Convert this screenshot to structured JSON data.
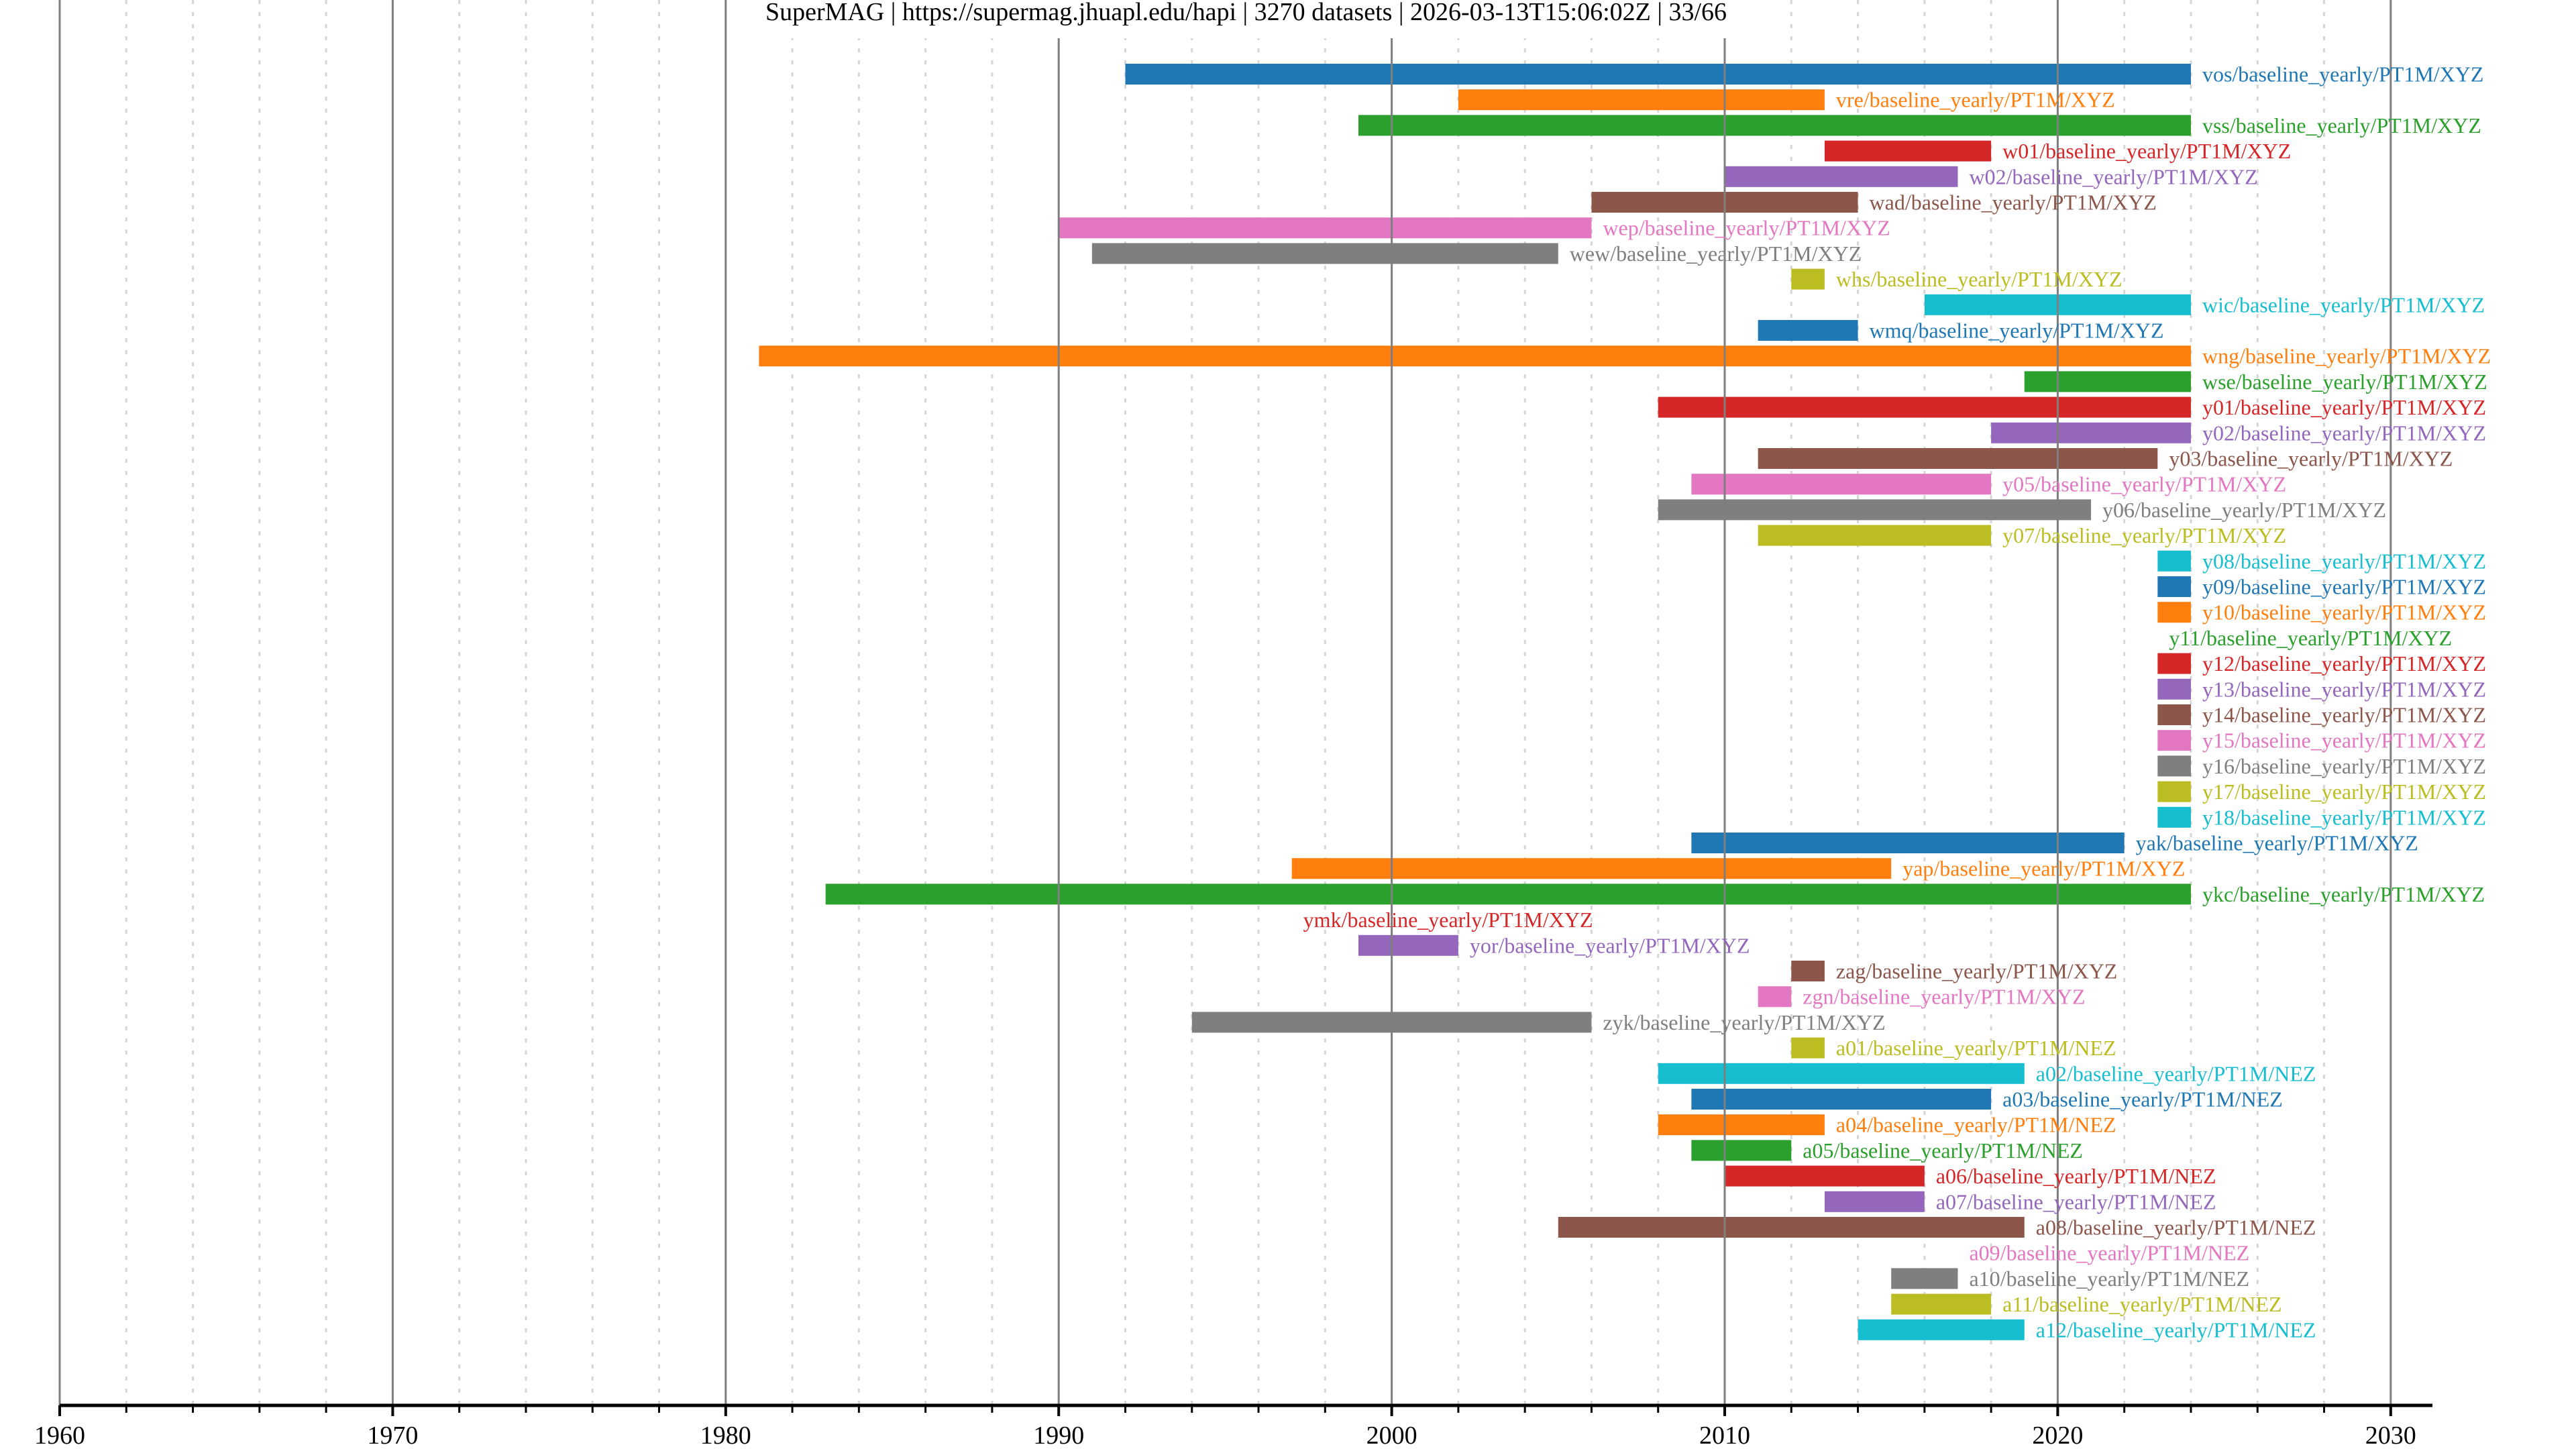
{
  "chart_data": {
    "type": "timeline",
    "title": "SuperMAG | https://supermag.jhuapl.edu/hapi | 3270 datasets | 2026-03-13T15:06:02Z | 33/66",
    "xlabel": "",
    "ylabel": "",
    "xlim": [
      1960,
      2031
    ],
    "major_tick_step": 10,
    "minor_tick_step": 2,
    "x_tick_labels": [
      "1960",
      "1970",
      "1980",
      "1990",
      "2000",
      "2010",
      "2020",
      "2030"
    ],
    "grid": true,
    "palette": [
      "#1f77b4",
      "#ff7f0e",
      "#2ca02c",
      "#d62728",
      "#9467bd",
      "#8c564b",
      "#e377c2",
      "#7f7f7f",
      "#bcbd22",
      "#17becf"
    ],
    "series": [
      {
        "name": "vos/baseline_yearly/PT1M/XYZ",
        "start": 1992,
        "end": 2024
      },
      {
        "name": "vre/baseline_yearly/PT1M/XYZ",
        "start": 2002,
        "end": 2013
      },
      {
        "name": "vss/baseline_yearly/PT1M/XYZ",
        "start": 1999,
        "end": 2024
      },
      {
        "name": "w01/baseline_yearly/PT1M/XYZ",
        "start": 2013,
        "end": 2018
      },
      {
        "name": "w02/baseline_yearly/PT1M/XYZ",
        "start": 2010,
        "end": 2017
      },
      {
        "name": "wad/baseline_yearly/PT1M/XYZ",
        "start": 2006,
        "end": 2014
      },
      {
        "name": "wep/baseline_yearly/PT1M/XYZ",
        "start": 1990,
        "end": 2006
      },
      {
        "name": "wew/baseline_yearly/PT1M/XYZ",
        "start": 1991,
        "end": 2005
      },
      {
        "name": "whs/baseline_yearly/PT1M/XYZ",
        "start": 2012,
        "end": 2013
      },
      {
        "name": "wic/baseline_yearly/PT1M/XYZ",
        "start": 2016,
        "end": 2024
      },
      {
        "name": "wmq/baseline_yearly/PT1M/XYZ",
        "start": 2011,
        "end": 2014
      },
      {
        "name": "wng/baseline_yearly/PT1M/XYZ",
        "start": 1981,
        "end": 2024
      },
      {
        "name": "wse/baseline_yearly/PT1M/XYZ",
        "start": 2019,
        "end": 2024
      },
      {
        "name": "y01/baseline_yearly/PT1M/XYZ",
        "start": 2008,
        "end": 2024
      },
      {
        "name": "y02/baseline_yearly/PT1M/XYZ",
        "start": 2018,
        "end": 2024
      },
      {
        "name": "y03/baseline_yearly/PT1M/XYZ",
        "start": 2011,
        "end": 2023
      },
      {
        "name": "y05/baseline_yearly/PT1M/XYZ",
        "start": 2009,
        "end": 2018
      },
      {
        "name": "y06/baseline_yearly/PT1M/XYZ",
        "start": 2008,
        "end": 2021
      },
      {
        "name": "y07/baseline_yearly/PT1M/XYZ",
        "start": 2011,
        "end": 2018
      },
      {
        "name": "y08/baseline_yearly/PT1M/XYZ",
        "start": 2023,
        "end": 2024
      },
      {
        "name": "y09/baseline_yearly/PT1M/XYZ",
        "start": 2023,
        "end": 2024
      },
      {
        "name": "y10/baseline_yearly/PT1M/XYZ",
        "start": 2023,
        "end": 2024
      },
      {
        "name": "y11/baseline_yearly/PT1M/XYZ",
        "start": 2023,
        "end": 2023
      },
      {
        "name": "y12/baseline_yearly/PT1M/XYZ",
        "start": 2023,
        "end": 2024
      },
      {
        "name": "y13/baseline_yearly/PT1M/XYZ",
        "start": 2023,
        "end": 2024
      },
      {
        "name": "y14/baseline_yearly/PT1M/XYZ",
        "start": 2023,
        "end": 2024
      },
      {
        "name": "y15/baseline_yearly/PT1M/XYZ",
        "start": 2023,
        "end": 2024
      },
      {
        "name": "y16/baseline_yearly/PT1M/XYZ",
        "start": 2023,
        "end": 2024
      },
      {
        "name": "y17/baseline_yearly/PT1M/XYZ",
        "start": 2023,
        "end": 2024
      },
      {
        "name": "y18/baseline_yearly/PT1M/XYZ",
        "start": 2023,
        "end": 2024
      },
      {
        "name": "yak/baseline_yearly/PT1M/XYZ",
        "start": 2009,
        "end": 2022
      },
      {
        "name": "yap/baseline_yearly/PT1M/XYZ",
        "start": 1997,
        "end": 2015
      },
      {
        "name": "ykc/baseline_yearly/PT1M/XYZ",
        "start": 1983,
        "end": 2024
      },
      {
        "name": "ymk/baseline_yearly/PT1M/XYZ",
        "start": 1997,
        "end": 1997
      },
      {
        "name": "yor/baseline_yearly/PT1M/XYZ",
        "start": 1999,
        "end": 2002
      },
      {
        "name": "zag/baseline_yearly/PT1M/XYZ",
        "start": 2012,
        "end": 2013
      },
      {
        "name": "zgn/baseline_yearly/PT1M/XYZ",
        "start": 2011,
        "end": 2012
      },
      {
        "name": "zyk/baseline_yearly/PT1M/XYZ",
        "start": 1994,
        "end": 2006
      },
      {
        "name": "a01/baseline_yearly/PT1M/NEZ",
        "start": 2012,
        "end": 2013
      },
      {
        "name": "a02/baseline_yearly/PT1M/NEZ",
        "start": 2008,
        "end": 2019
      },
      {
        "name": "a03/baseline_yearly/PT1M/NEZ",
        "start": 2009,
        "end": 2018
      },
      {
        "name": "a04/baseline_yearly/PT1M/NEZ",
        "start": 2008,
        "end": 2013
      },
      {
        "name": "a05/baseline_yearly/PT1M/NEZ",
        "start": 2009,
        "end": 2012
      },
      {
        "name": "a06/baseline_yearly/PT1M/NEZ",
        "start": 2010,
        "end": 2016
      },
      {
        "name": "a07/baseline_yearly/PT1M/NEZ",
        "start": 2013,
        "end": 2016
      },
      {
        "name": "a08/baseline_yearly/PT1M/NEZ",
        "start": 2005,
        "end": 2019
      },
      {
        "name": "a09/baseline_yearly/PT1M/NEZ",
        "start": 2017,
        "end": 2017
      },
      {
        "name": "a10/baseline_yearly/PT1M/NEZ",
        "start": 2015,
        "end": 2017
      },
      {
        "name": "a11/baseline_yearly/PT1M/NEZ",
        "start": 2015,
        "end": 2018
      },
      {
        "name": "a12/baseline_yearly/PT1M/NEZ",
        "start": 2014,
        "end": 2019
      }
    ]
  }
}
